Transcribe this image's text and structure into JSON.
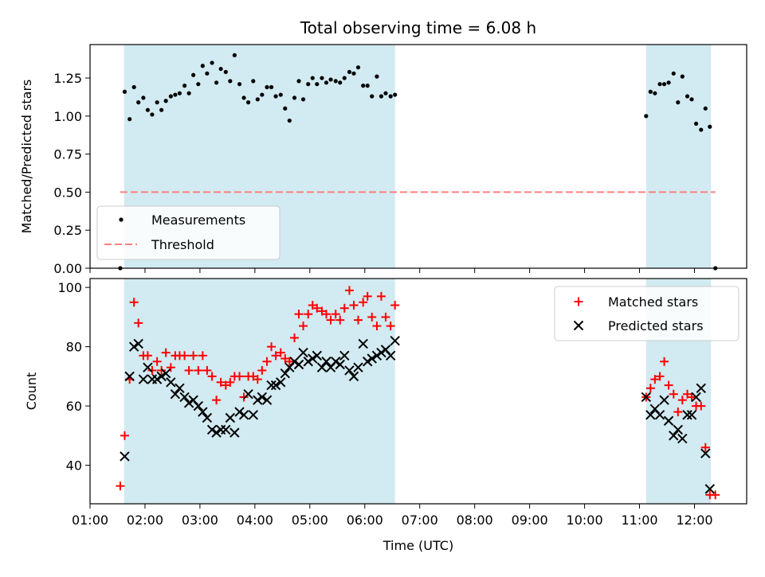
{
  "title": "Total observing time = 6.08 h",
  "colors": {
    "band": "#add8e6",
    "measurements": "#000000",
    "threshold": "#ff7f7f",
    "matched": "#ff0000",
    "predicted": "#000000"
  },
  "chart_data": [
    {
      "type": "scatter",
      "panel": "top",
      "xlabel": "",
      "ylabel": "Matched/Predicted stars",
      "xlim_hours": [
        1.0,
        12.95
      ],
      "ylim": [
        0,
        1.47
      ],
      "yticks": [
        "0.00",
        "0.25",
        "0.50",
        "0.75",
        "1.00",
        "1.25"
      ],
      "ytick_values": [
        0,
        0.25,
        0.5,
        0.75,
        1.0,
        1.25
      ],
      "grid": false,
      "legend_position": "lower left",
      "shaded_intervals_hours": [
        [
          1.62,
          6.55
        ],
        [
          11.12,
          12.3
        ]
      ],
      "series": [
        {
          "name": "Measurements",
          "marker": "dot",
          "points": [
            [
              1.55,
              0.0
            ],
            [
              1.63,
              1.16
            ],
            [
              1.72,
              0.98
            ],
            [
              1.8,
              1.19
            ],
            [
              1.88,
              1.09
            ],
            [
              1.97,
              1.12
            ],
            [
              2.05,
              1.04
            ],
            [
              2.13,
              1.01
            ],
            [
              2.22,
              1.09
            ],
            [
              2.3,
              1.04
            ],
            [
              2.38,
              1.1
            ],
            [
              2.47,
              1.13
            ],
            [
              2.55,
              1.14
            ],
            [
              2.63,
              1.15
            ],
            [
              2.72,
              1.2
            ],
            [
              2.8,
              1.15
            ],
            [
              2.88,
              1.27
            ],
            [
              2.97,
              1.21
            ],
            [
              3.05,
              1.33
            ],
            [
              3.13,
              1.28
            ],
            [
              3.22,
              1.35
            ],
            [
              3.3,
              1.22
            ],
            [
              3.38,
              1.31
            ],
            [
              3.47,
              1.29
            ],
            [
              3.55,
              1.23
            ],
            [
              3.63,
              1.4
            ],
            [
              3.72,
              1.21
            ],
            [
              3.8,
              1.12
            ],
            [
              3.88,
              1.09
            ],
            [
              3.97,
              1.23
            ],
            [
              4.05,
              1.11
            ],
            [
              4.13,
              1.14
            ],
            [
              4.22,
              1.19
            ],
            [
              4.3,
              1.19
            ],
            [
              4.38,
              1.13
            ],
            [
              4.47,
              1.14
            ],
            [
              4.55,
              1.05
            ],
            [
              4.63,
              0.97
            ],
            [
              4.72,
              1.12
            ],
            [
              4.8,
              1.23
            ],
            [
              4.88,
              1.11
            ],
            [
              4.97,
              1.21
            ],
            [
              5.05,
              1.25
            ],
            [
              5.13,
              1.21
            ],
            [
              5.22,
              1.25
            ],
            [
              5.3,
              1.22
            ],
            [
              5.38,
              1.24
            ],
            [
              5.47,
              1.23
            ],
            [
              5.55,
              1.22
            ],
            [
              5.63,
              1.25
            ],
            [
              5.72,
              1.29
            ],
            [
              5.8,
              1.28
            ],
            [
              5.88,
              1.32
            ],
            [
              5.97,
              1.2
            ],
            [
              6.05,
              1.2
            ],
            [
              6.13,
              1.13
            ],
            [
              6.22,
              1.26
            ],
            [
              6.3,
              1.13
            ],
            [
              6.38,
              1.15
            ],
            [
              6.47,
              1.13
            ],
            [
              6.55,
              1.14
            ],
            [
              11.12,
              1.0
            ],
            [
              11.2,
              1.16
            ],
            [
              11.28,
              1.15
            ],
            [
              11.37,
              1.21
            ],
            [
              11.45,
              1.21
            ],
            [
              11.53,
              1.22
            ],
            [
              11.62,
              1.28
            ],
            [
              11.7,
              1.09
            ],
            [
              11.78,
              1.26
            ],
            [
              11.87,
              1.13
            ],
            [
              11.95,
              1.11
            ],
            [
              12.03,
              0.95
            ],
            [
              12.12,
              0.91
            ],
            [
              12.2,
              1.05
            ],
            [
              12.28,
              0.93
            ],
            [
              12.38,
              0.0
            ]
          ]
        },
        {
          "name": "Threshold",
          "style": "dashed-line",
          "points": [
            [
              1.55,
              0.5
            ],
            [
              12.38,
              0.5
            ]
          ]
        }
      ]
    },
    {
      "type": "scatter",
      "panel": "bottom",
      "xlabel": "Time (UTC)",
      "ylabel": "Count",
      "xlim_hours": [
        1.0,
        12.95
      ],
      "ylim": [
        27,
        103
      ],
      "xticks": [
        "01:00",
        "02:00",
        "03:00",
        "04:00",
        "05:00",
        "06:00",
        "07:00",
        "08:00",
        "09:00",
        "10:00",
        "11:00",
        "12:00"
      ],
      "xtick_values": [
        1,
        2,
        3,
        4,
        5,
        6,
        7,
        8,
        9,
        10,
        11,
        12
      ],
      "yticks": [
        "40",
        "60",
        "80",
        "100"
      ],
      "ytick_values": [
        40,
        60,
        80,
        100
      ],
      "grid": false,
      "legend_position": "upper right",
      "shaded_intervals_hours": [
        [
          1.62,
          6.55
        ],
        [
          11.12,
          12.3
        ]
      ],
      "series": [
        {
          "name": "Matched stars",
          "marker": "plus",
          "points": [
            [
              1.55,
              33
            ],
            [
              1.63,
              50
            ],
            [
              1.72,
              69
            ],
            [
              1.8,
              95
            ],
            [
              1.88,
              88
            ],
            [
              1.97,
              77
            ],
            [
              2.05,
              77
            ],
            [
              2.13,
              72
            ],
            [
              2.22,
              75
            ],
            [
              2.3,
              72
            ],
            [
              2.38,
              78
            ],
            [
              2.47,
              73
            ],
            [
              2.55,
              77
            ],
            [
              2.63,
              77
            ],
            [
              2.72,
              77
            ],
            [
              2.8,
              72
            ],
            [
              2.88,
              77
            ],
            [
              2.97,
              72
            ],
            [
              3.05,
              77
            ],
            [
              3.13,
              72
            ],
            [
              3.22,
              70
            ],
            [
              3.3,
              62
            ],
            [
              3.38,
              68
            ],
            [
              3.47,
              67
            ],
            [
              3.55,
              68
            ],
            [
              3.63,
              70
            ],
            [
              3.72,
              70
            ],
            [
              3.8,
              63
            ],
            [
              3.88,
              70
            ],
            [
              3.97,
              70
            ],
            [
              4.05,
              69
            ],
            [
              4.13,
              72
            ],
            [
              4.22,
              75
            ],
            [
              4.3,
              80
            ],
            [
              4.38,
              77
            ],
            [
              4.47,
              78
            ],
            [
              4.55,
              76
            ],
            [
              4.63,
              75
            ],
            [
              4.72,
              83
            ],
            [
              4.8,
              91
            ],
            [
              4.88,
              87
            ],
            [
              4.97,
              91
            ],
            [
              5.05,
              94
            ],
            [
              5.13,
              93
            ],
            [
              5.22,
              92
            ],
            [
              5.3,
              91
            ],
            [
              5.38,
              89
            ],
            [
              5.47,
              91
            ],
            [
              5.55,
              89
            ],
            [
              5.63,
              93
            ],
            [
              5.72,
              99
            ],
            [
              5.8,
              94
            ],
            [
              5.88,
              89
            ],
            [
              5.97,
              95
            ],
            [
              6.05,
              97
            ],
            [
              6.13,
              90
            ],
            [
              6.22,
              87
            ],
            [
              6.3,
              97
            ],
            [
              6.38,
              90
            ],
            [
              6.47,
              87
            ],
            [
              6.55,
              94
            ],
            [
              11.12,
              63
            ],
            [
              11.2,
              66
            ],
            [
              11.28,
              69
            ],
            [
              11.37,
              70
            ],
            [
              11.45,
              75
            ],
            [
              11.53,
              67
            ],
            [
              11.62,
              64
            ],
            [
              11.7,
              58
            ],
            [
              11.78,
              62
            ],
            [
              11.87,
              64
            ],
            [
              11.95,
              63
            ],
            [
              12.03,
              60
            ],
            [
              12.12,
              60
            ],
            [
              12.2,
              46
            ],
            [
              12.28,
              30
            ],
            [
              12.38,
              30
            ]
          ]
        },
        {
          "name": "Predicted stars",
          "marker": "x",
          "points": [
            [
              1.63,
              43
            ],
            [
              1.72,
              70
            ],
            [
              1.8,
              80
            ],
            [
              1.88,
              81
            ],
            [
              1.97,
              69
            ],
            [
              2.05,
              73
            ],
            [
              2.13,
              69
            ],
            [
              2.22,
              69
            ],
            [
              2.3,
              70
            ],
            [
              2.38,
              71
            ],
            [
              2.47,
              68
            ],
            [
              2.55,
              64
            ],
            [
              2.63,
              66
            ],
            [
              2.72,
              63
            ],
            [
              2.8,
              61
            ],
            [
              2.88,
              62
            ],
            [
              2.97,
              60
            ],
            [
              3.05,
              58
            ],
            [
              3.13,
              56
            ],
            [
              3.22,
              52
            ],
            [
              3.3,
              51
            ],
            [
              3.38,
              52
            ],
            [
              3.47,
              52
            ],
            [
              3.55,
              56
            ],
            [
              3.63,
              51
            ],
            [
              3.72,
              58
            ],
            [
              3.8,
              57
            ],
            [
              3.88,
              64
            ],
            [
              3.97,
              57
            ],
            [
              4.05,
              62
            ],
            [
              4.13,
              63
            ],
            [
              4.22,
              62
            ],
            [
              4.3,
              67
            ],
            [
              4.38,
              67
            ],
            [
              4.47,
              68
            ],
            [
              4.55,
              71
            ],
            [
              4.63,
              73
            ],
            [
              4.72,
              75
            ],
            [
              4.8,
              74
            ],
            [
              4.88,
              78
            ],
            [
              4.97,
              75
            ],
            [
              5.05,
              76
            ],
            [
              5.13,
              77
            ],
            [
              5.22,
              73
            ],
            [
              5.3,
              75
            ],
            [
              5.38,
              73
            ],
            [
              5.47,
              75
            ],
            [
              5.55,
              74
            ],
            [
              5.63,
              77
            ],
            [
              5.72,
              72
            ],
            [
              5.8,
              70
            ],
            [
              5.88,
              73
            ],
            [
              5.97,
              81
            ],
            [
              6.05,
              75
            ],
            [
              6.13,
              76
            ],
            [
              6.22,
              77
            ],
            [
              6.3,
              78
            ],
            [
              6.38,
              79
            ],
            [
              6.47,
              77
            ],
            [
              6.55,
              82
            ],
            [
              11.12,
              63
            ],
            [
              11.2,
              57
            ],
            [
              11.28,
              59
            ],
            [
              11.37,
              57
            ],
            [
              11.45,
              62
            ],
            [
              11.53,
              55
            ],
            [
              11.62,
              50
            ],
            [
              11.7,
              52
            ],
            [
              11.78,
              49
            ],
            [
              11.87,
              57
            ],
            [
              11.95,
              57
            ],
            [
              12.03,
              63
            ],
            [
              12.12,
              66
            ],
            [
              12.2,
              44
            ],
            [
              12.28,
              32
            ]
          ]
        }
      ]
    }
  ]
}
